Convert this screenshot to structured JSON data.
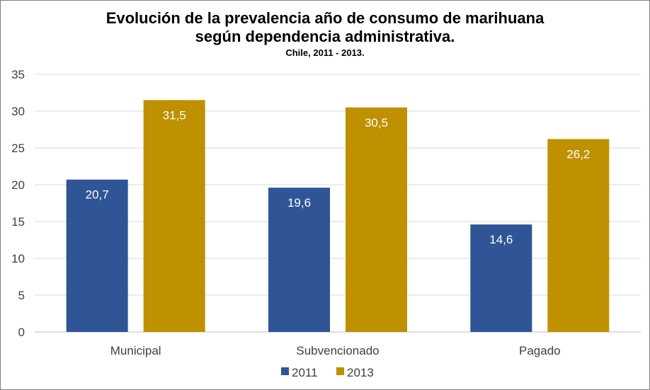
{
  "chart_data": {
    "type": "bar",
    "title": "Evolución de la prevalencia año de consumo de marihuana",
    "title_line2": "según dependencia administrativa.",
    "subtitle": "Chile, 2011 - 2013.",
    "categories": [
      "Municipal",
      "Subvencionado",
      "Pagado"
    ],
    "series": [
      {
        "name": "2011",
        "color": "#2f5597",
        "values": [
          20.7,
          19.6,
          14.6
        ],
        "labels": [
          "20,7",
          "19,6",
          "14,6"
        ]
      },
      {
        "name": "2013",
        "color": "#bf9000",
        "values": [
          31.5,
          30.5,
          26.2
        ],
        "labels": [
          "31,5",
          "30,5",
          "26,2"
        ]
      }
    ],
    "ylim": [
      0,
      35
    ],
    "yticks": [
      0,
      5,
      10,
      15,
      20,
      25,
      30,
      35
    ],
    "grid": true,
    "legend": "bottom",
    "xlabel": "",
    "ylabel": ""
  }
}
